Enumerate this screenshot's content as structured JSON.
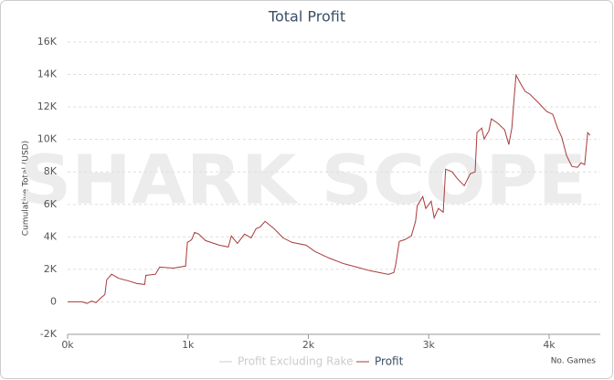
{
  "chart_data": {
    "type": "line",
    "title": "Total Profit",
    "watermark": "SHARK SCOPE",
    "x_label": "No. Games",
    "y_label": "Cumulative Total (USD)",
    "xlim": [
      0,
      4425
    ],
    "ylim": [
      -2000,
      16000
    ],
    "xticks": [
      {
        "value": 0,
        "label": "0k"
      },
      {
        "value": 1000,
        "label": "1k"
      },
      {
        "value": 2000,
        "label": "2k"
      },
      {
        "value": 3000,
        "label": "3k"
      },
      {
        "value": 4000,
        "label": "4k"
      }
    ],
    "yticks": [
      {
        "value": -2000,
        "label": "-2K"
      },
      0,
      {
        "value": 2000,
        "label": "2K"
      },
      {
        "value": 4000,
        "label": "4K"
      },
      {
        "value": 6000,
        "label": "6K"
      },
      {
        "value": 8000,
        "label": "8K"
      },
      {
        "value": 10000,
        "label": "10K"
      },
      {
        "value": 12000,
        "label": "12K"
      },
      {
        "value": 14000,
        "label": "14K"
      },
      {
        "value": 16000,
        "label": "16K"
      }
    ],
    "grid": true,
    "x": [
      0,
      120,
      160,
      200,
      235,
      270,
      310,
      325,
      365,
      425,
      500,
      575,
      640,
      650,
      730,
      765,
      880,
      980,
      995,
      1030,
      1055,
      1090,
      1145,
      1260,
      1335,
      1360,
      1410,
      1470,
      1525,
      1565,
      1600,
      1640,
      1715,
      1790,
      1865,
      1980,
      2055,
      2170,
      2285,
      2400,
      2510,
      2590,
      2665,
      2710,
      2725,
      2755,
      2800,
      2855,
      2890,
      2905,
      2950,
      2975,
      3020,
      3045,
      3080,
      3120,
      3140,
      3195,
      3235,
      3295,
      3345,
      3385,
      3400,
      3440,
      3460,
      3500,
      3520,
      3575,
      3630,
      3665,
      3690,
      3705,
      3725,
      3765,
      3800,
      3840,
      3915,
      3980,
      4030,
      4070,
      4105,
      4145,
      4190,
      4235,
      4265,
      4295,
      4320,
      4340
    ],
    "series": [
      {
        "name": "Profit Excluding Rake",
        "color": "#cccccc",
        "hidden": true
      },
      {
        "name": "Profit",
        "color": "#a83a3a",
        "values": [
          0,
          0,
          -100,
          50,
          -50,
          200,
          450,
          1350,
          1700,
          1450,
          1300,
          1130,
          1070,
          1630,
          1700,
          2140,
          2080,
          2200,
          3660,
          3830,
          4280,
          4170,
          3770,
          3490,
          3380,
          4060,
          3600,
          4170,
          3940,
          4500,
          4620,
          4960,
          4500,
          3940,
          3660,
          3490,
          3100,
          2700,
          2370,
          2140,
          1920,
          1800,
          1690,
          1800,
          2250,
          3720,
          3830,
          4060,
          4960,
          5920,
          6480,
          5750,
          6200,
          5180,
          5750,
          5520,
          8170,
          8000,
          7610,
          7150,
          7890,
          8000,
          10420,
          10700,
          10030,
          10540,
          11270,
          10990,
          10590,
          9690,
          10700,
          12110,
          13970,
          13410,
          12960,
          12790,
          12230,
          11720,
          11550,
          10700,
          10140,
          9010,
          8340,
          8280,
          8560,
          8450,
          10420,
          10250
        ]
      }
    ]
  }
}
